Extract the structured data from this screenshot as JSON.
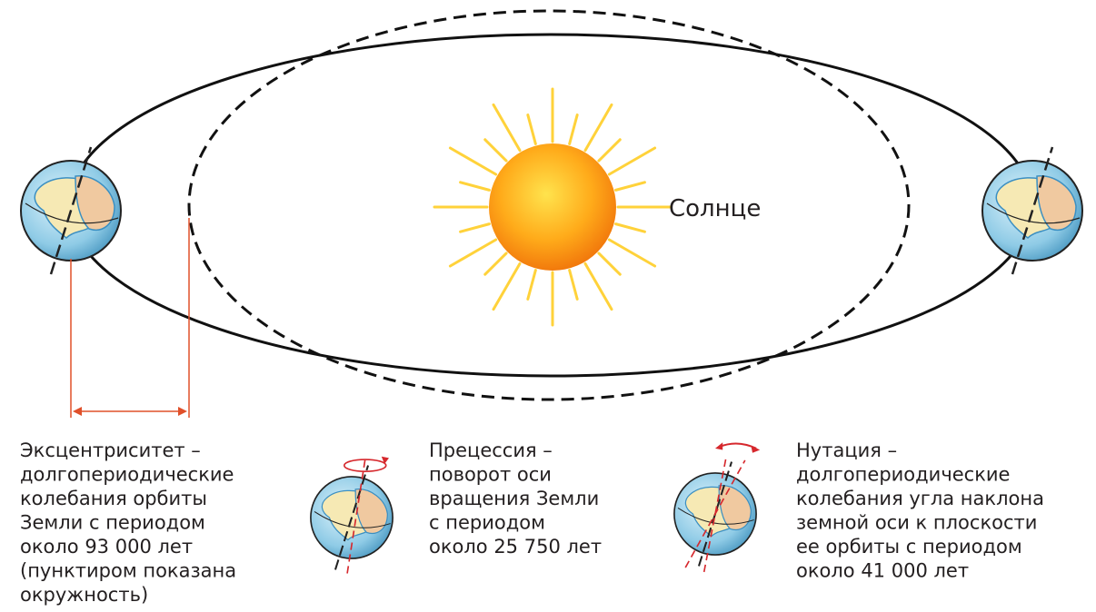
{
  "sun_label": "Солнце",
  "captions": [
    {
      "lines": [
        "Эксцентриситет –",
        "долгопериодические",
        "колебания  орбиты",
        "Земли с периодом",
        "около 93 000 лет",
        "(пунктиром показана",
        "окружность)"
      ]
    },
    {
      "lines": [
        "Прецессия –",
        "поворот оси",
        "вращения Земли",
        "с периодом",
        "около 25 750 лет"
      ]
    },
    {
      "lines": [
        "Нутация –",
        "долгопериодические",
        "колебания угла наклона",
        "земной оси к плоскости",
        "ее орбиты с периодом",
        "около 41 000 лет"
      ]
    }
  ]
}
